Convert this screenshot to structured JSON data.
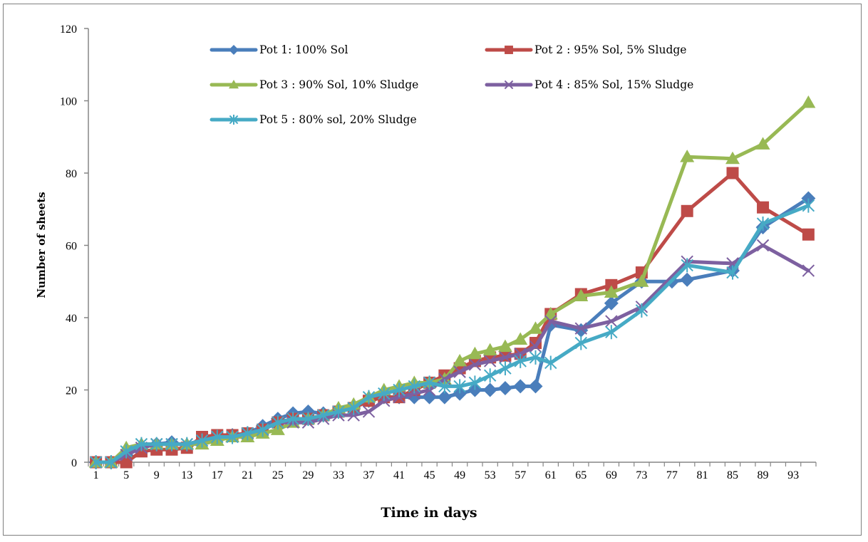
{
  "chart_data": {
    "type": "line",
    "title": "",
    "xlabel": "Time in days",
    "ylabel": "Number of sheets",
    "ylim": [
      0,
      120
    ],
    "yticks": [
      0,
      20,
      40,
      60,
      80,
      100,
      120
    ],
    "xtick_labels": [
      "1",
      "5",
      "9",
      "13",
      "17",
      "21",
      "25",
      "29",
      "33",
      "37",
      "41",
      "45",
      "49",
      "53",
      "57",
      "61",
      "65",
      "69",
      "73",
      "77",
      "81",
      "85",
      "89",
      "93"
    ],
    "grid": false,
    "legend_position": "top",
    "series": [
      {
        "name": "Pot 1: 100% Sol",
        "color": "#4a7ebb",
        "marker": "diamond",
        "points": [
          [
            1,
            0
          ],
          [
            3,
            0
          ],
          [
            5,
            2
          ],
          [
            7,
            4
          ],
          [
            9,
            5
          ],
          [
            11,
            5.5
          ],
          [
            13,
            4.5
          ],
          [
            15,
            6
          ],
          [
            17,
            7
          ],
          [
            19,
            7.5
          ],
          [
            21,
            8
          ],
          [
            23,
            10
          ],
          [
            25,
            12
          ],
          [
            27,
            13.5
          ],
          [
            29,
            14
          ],
          [
            31,
            13.5
          ],
          [
            33,
            14
          ],
          [
            35,
            15
          ],
          [
            37,
            17
          ],
          [
            39,
            18
          ],
          [
            41,
            18
          ],
          [
            43,
            18
          ],
          [
            45,
            18
          ],
          [
            47,
            18
          ],
          [
            49,
            19
          ],
          [
            51,
            20
          ],
          [
            53,
            20
          ],
          [
            55,
            20.5
          ],
          [
            57,
            21
          ],
          [
            59,
            21
          ],
          [
            61,
            38
          ],
          [
            65,
            36.5
          ],
          [
            69,
            44
          ],
          [
            73,
            50
          ],
          [
            77,
            50
          ],
          [
            79,
            50.5
          ],
          [
            85,
            53
          ],
          [
            89,
            65
          ],
          [
            95,
            73
          ]
        ]
      },
      {
        "name": "Pot 2 : 95% Sol,  5% Sludge",
        "color": "#be4b48",
        "marker": "square",
        "points": [
          [
            1,
            0
          ],
          [
            3,
            0
          ],
          [
            5,
            0
          ],
          [
            7,
            3
          ],
          [
            9,
            3.5
          ],
          [
            11,
            3.5
          ],
          [
            13,
            4
          ],
          [
            15,
            7
          ],
          [
            17,
            7.5
          ],
          [
            19,
            7.5
          ],
          [
            21,
            8
          ],
          [
            23,
            9
          ],
          [
            25,
            11
          ],
          [
            27,
            12
          ],
          [
            29,
            12
          ],
          [
            31,
            13
          ],
          [
            33,
            14
          ],
          [
            35,
            15
          ],
          [
            37,
            17
          ],
          [
            39,
            18
          ],
          [
            41,
            18
          ],
          [
            43,
            20
          ],
          [
            45,
            22
          ],
          [
            47,
            24
          ],
          [
            49,
            26
          ],
          [
            51,
            28
          ],
          [
            53,
            29
          ],
          [
            55,
            29.5
          ],
          [
            57,
            30
          ],
          [
            59,
            33
          ],
          [
            61,
            41
          ],
          [
            65,
            46.5
          ],
          [
            69,
            49
          ],
          [
            73,
            52.5
          ],
          [
            79,
            69.5
          ],
          [
            85,
            80
          ],
          [
            89,
            70.5
          ],
          [
            95,
            63
          ]
        ]
      },
      {
        "name": "Pot 3 : 90% Sol, 10% Sludge",
        "color": "#98b954",
        "marker": "triangle",
        "points": [
          [
            1,
            0
          ],
          [
            3,
            0
          ],
          [
            5,
            4
          ],
          [
            7,
            5
          ],
          [
            9,
            5
          ],
          [
            11,
            5
          ],
          [
            13,
            5
          ],
          [
            15,
            5
          ],
          [
            17,
            6
          ],
          [
            19,
            7
          ],
          [
            21,
            7
          ],
          [
            23,
            8
          ],
          [
            25,
            9
          ],
          [
            27,
            11
          ],
          [
            29,
            12
          ],
          [
            31,
            13
          ],
          [
            33,
            15
          ],
          [
            35,
            16
          ],
          [
            37,
            18
          ],
          [
            39,
            20
          ],
          [
            41,
            21
          ],
          [
            43,
            22
          ],
          [
            45,
            22
          ],
          [
            47,
            23
          ],
          [
            49,
            28
          ],
          [
            51,
            30
          ],
          [
            53,
            31
          ],
          [
            55,
            32
          ],
          [
            57,
            34
          ],
          [
            59,
            37
          ],
          [
            61,
            41
          ],
          [
            65,
            46
          ],
          [
            69,
            47
          ],
          [
            73,
            50
          ],
          [
            79,
            84.5
          ],
          [
            85,
            84
          ],
          [
            89,
            88
          ],
          [
            95,
            99.5
          ]
        ]
      },
      {
        "name": "Pot 4 : 85% Sol, 15% Sludge",
        "color": "#7d60a0",
        "marker": "x",
        "points": [
          [
            1,
            0
          ],
          [
            3,
            0
          ],
          [
            5,
            2
          ],
          [
            7,
            4
          ],
          [
            9,
            5
          ],
          [
            11,
            5
          ],
          [
            13,
            5
          ],
          [
            15,
            6
          ],
          [
            17,
            7
          ],
          [
            19,
            7
          ],
          [
            21,
            8
          ],
          [
            23,
            9
          ],
          [
            25,
            11
          ],
          [
            27,
            11
          ],
          [
            29,
            11
          ],
          [
            31,
            12
          ],
          [
            33,
            13
          ],
          [
            35,
            13
          ],
          [
            37,
            14
          ],
          [
            39,
            17
          ],
          [
            41,
            18
          ],
          [
            43,
            19
          ],
          [
            45,
            20
          ],
          [
            47,
            23
          ],
          [
            49,
            25
          ],
          [
            51,
            27
          ],
          [
            53,
            28
          ],
          [
            55,
            29
          ],
          [
            57,
            30
          ],
          [
            59,
            32
          ],
          [
            61,
            39
          ],
          [
            65,
            37
          ],
          [
            69,
            39
          ],
          [
            73,
            43
          ],
          [
            79,
            55.5
          ],
          [
            85,
            55
          ],
          [
            89,
            60
          ],
          [
            95,
            53
          ]
        ]
      },
      {
        "name": "Pot 5 : 80% sol, 20% Sludge",
        "color": "#46aac5",
        "marker": "star",
        "points": [
          [
            1,
            0
          ],
          [
            3,
            0
          ],
          [
            5,
            3
          ],
          [
            7,
            5
          ],
          [
            9,
            5
          ],
          [
            11,
            5
          ],
          [
            13,
            5
          ],
          [
            15,
            6
          ],
          [
            17,
            7
          ],
          [
            19,
            7
          ],
          [
            21,
            8
          ],
          [
            23,
            9
          ],
          [
            25,
            11
          ],
          [
            27,
            12
          ],
          [
            29,
            12
          ],
          [
            31,
            13
          ],
          [
            33,
            14
          ],
          [
            35,
            15
          ],
          [
            37,
            18
          ],
          [
            39,
            19
          ],
          [
            41,
            20
          ],
          [
            43,
            21
          ],
          [
            45,
            22
          ],
          [
            47,
            21
          ],
          [
            49,
            21
          ],
          [
            51,
            22
          ],
          [
            53,
            24
          ],
          [
            55,
            26
          ],
          [
            57,
            28
          ],
          [
            59,
            29
          ],
          [
            61,
            27.5
          ],
          [
            65,
            33
          ],
          [
            69,
            36
          ],
          [
            73,
            42
          ],
          [
            79,
            54.5
          ],
          [
            85,
            52.5
          ],
          [
            89,
            66
          ],
          [
            95,
            71
          ]
        ]
      }
    ]
  }
}
